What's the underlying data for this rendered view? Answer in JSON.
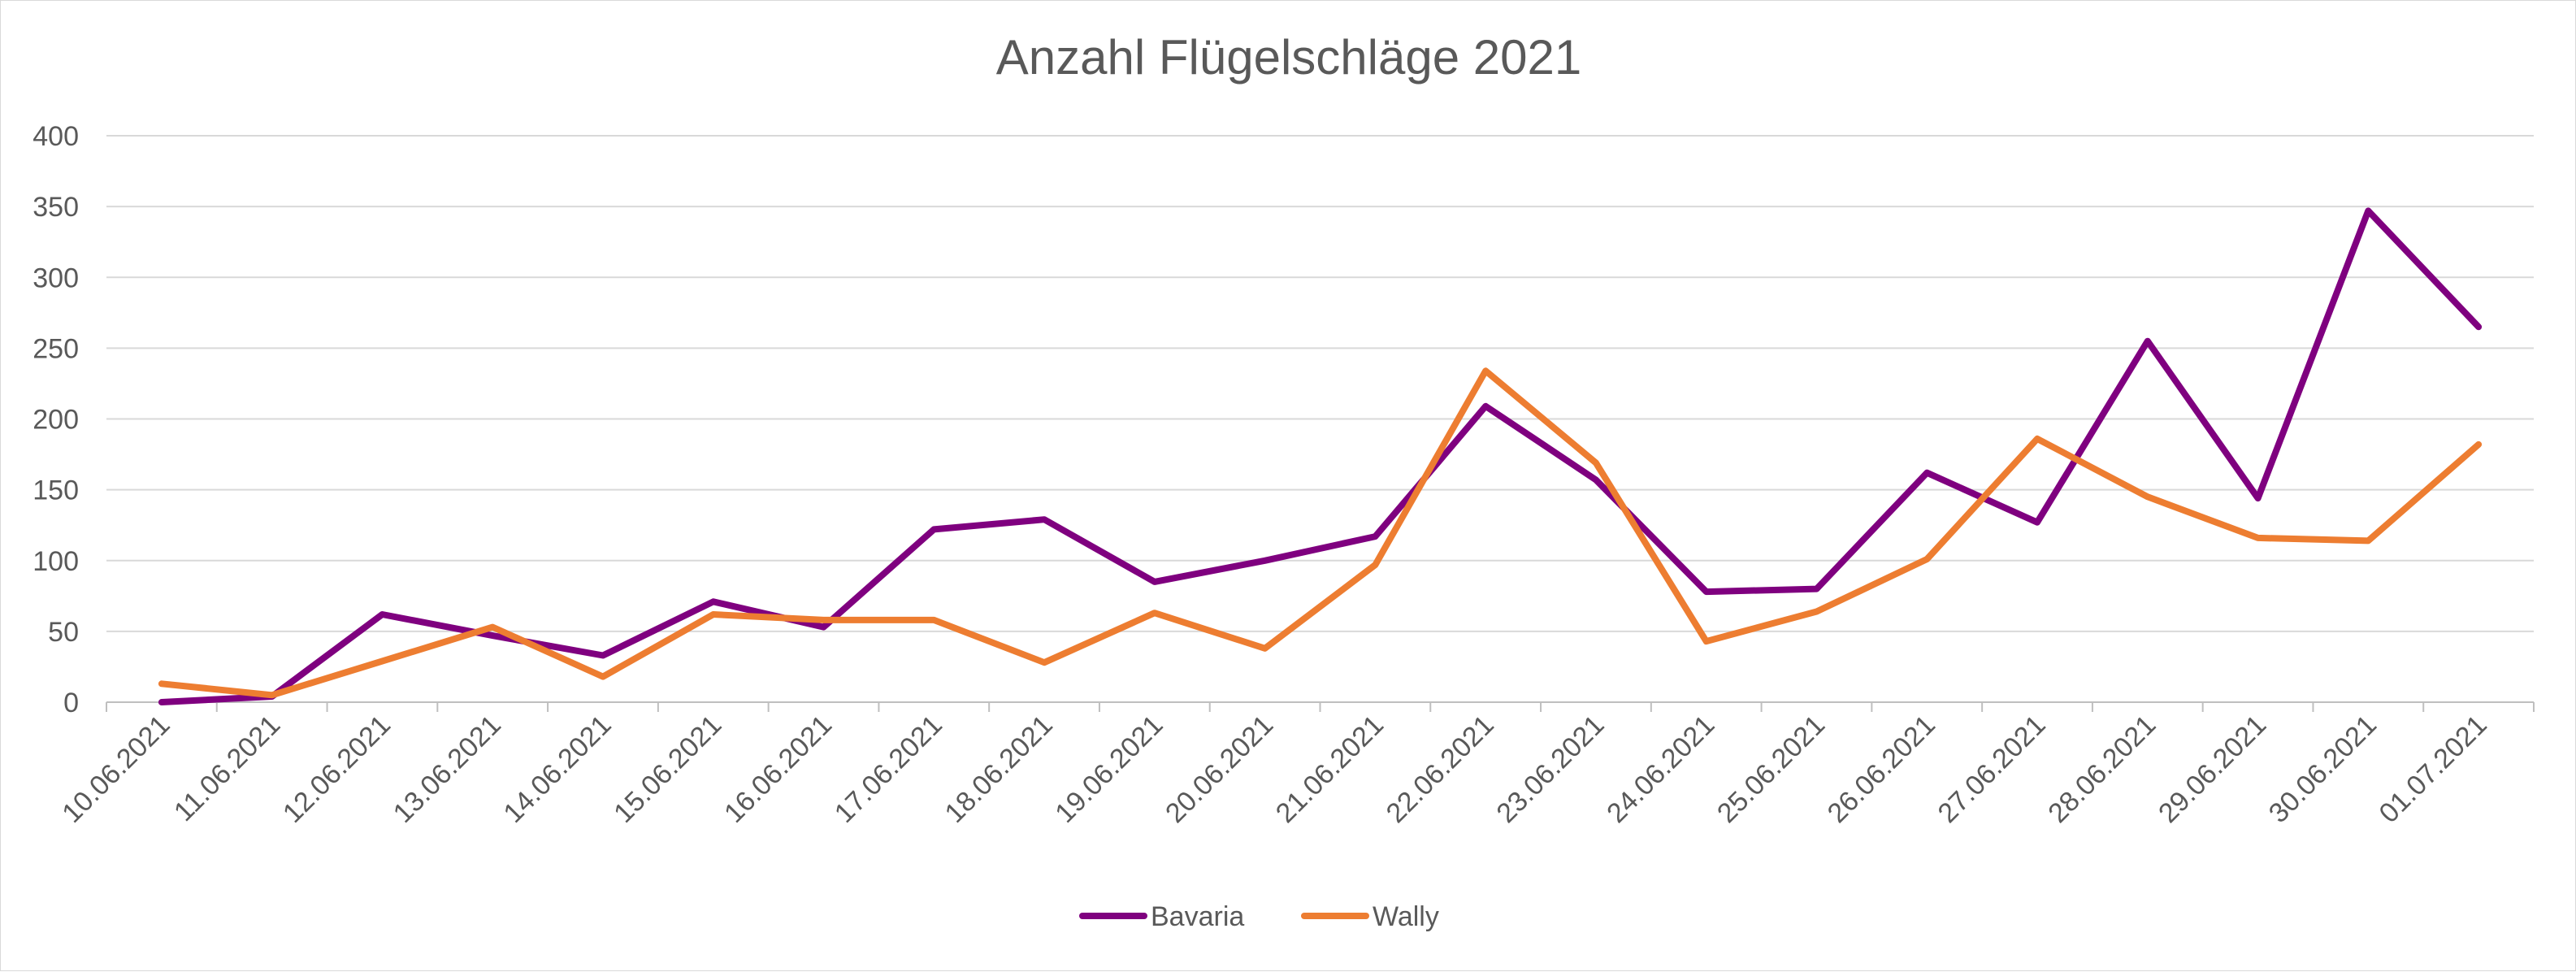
{
  "chart_data": {
    "type": "line",
    "title": "Anzahl Flügelschläge 2021",
    "xlabel": "",
    "ylabel": "",
    "ylim": [
      0,
      400
    ],
    "yticks": [
      0,
      50,
      100,
      150,
      200,
      250,
      300,
      350,
      400
    ],
    "grid": true,
    "legend_position": "bottom",
    "categories": [
      "10.06.2021",
      "11.06.2021",
      "12.06.2021",
      "13.06.2021",
      "14.06.2021",
      "15.06.2021",
      "16.06.2021",
      "17.06.2021",
      "18.06.2021",
      "19.06.2021",
      "20.06.2021",
      "21.06.2021",
      "22.06.2021",
      "23.06.2021",
      "24.06.2021",
      "25.06.2021",
      "26.06.2021",
      "27.06.2021",
      "28.06.2021",
      "29.06.2021",
      "30.06.2021",
      "01.07.2021"
    ],
    "series": [
      {
        "name": "Bavaria",
        "color": "#7f007f",
        "values": [
          0,
          4,
          62,
          47,
          33,
          71,
          53,
          122,
          129,
          85,
          100,
          117,
          209,
          157,
          78,
          80,
          162,
          127,
          255,
          144,
          347,
          265
        ]
      },
      {
        "name": "Wally",
        "color": "#ed7d31",
        "values": [
          13,
          5,
          29,
          53,
          18,
          62,
          58,
          58,
          28,
          63,
          38,
          97,
          234,
          169,
          43,
          64,
          101,
          186,
          145,
          116,
          114,
          182
        ]
      }
    ]
  }
}
